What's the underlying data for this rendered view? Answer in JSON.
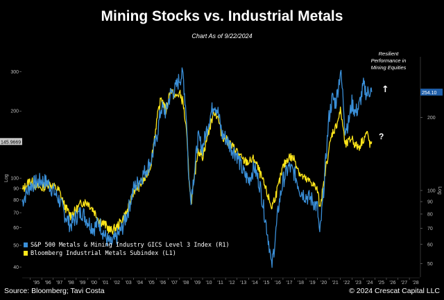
{
  "header": {
    "title": "Mining Stocks vs. Industrial Metals",
    "subtitle": "Chart As of 9/22/2024"
  },
  "footer": {
    "source": "Source: Bloomberg; Tavi Costa",
    "copyright": "© 2024 Crescat Capital LLC"
  },
  "colors": {
    "background": "#000000",
    "mining_series": "#3a8fd8",
    "metals_series": "#ffe61a",
    "mining_tag": "#1f5ea8",
    "metals_tag": "#c8c8c8"
  },
  "chart_data": {
    "type": "line",
    "scale": "log",
    "title": "Mining Stocks vs. Industrial Metals",
    "xlim": [
      1994.3,
      2028.9
    ],
    "x_ticks": [
      "'95",
      "'96",
      "'97",
      "'98",
      "'99",
      "'00",
      "'01",
      "'02",
      "'03",
      "'04",
      "'05",
      "'06",
      "'07",
      "'08",
      "'09",
      "'10",
      "'11",
      "'12",
      "'13",
      "'14",
      "'15",
      "'16",
      "'17",
      "'18",
      "'19",
      "'20",
      "'21",
      "'22",
      "'23",
      "'24",
      "'25",
      "'26",
      "'27",
      "'28"
    ],
    "left_axis": {
      "label": "Log",
      "ylim": [
        36,
        350
      ],
      "ticks": [
        40,
        50,
        60,
        70,
        80,
        90,
        100,
        200,
        300
      ],
      "last_value_tag": "145.9669"
    },
    "right_axis": {
      "label": "Log",
      "ylim": [
        44,
        355
      ],
      "ticks": [
        50,
        60,
        70,
        80,
        90,
        100,
        200
      ],
      "last_value_tag": "254.10"
    },
    "series": [
      {
        "name": "S&P 500 Metals & Mining Industry GICS Level 3 Index (R1)",
        "axis": "right",
        "x": [
          1994.3,
          1995,
          1995.5,
          1996,
          1996.5,
          1997,
          1997.5,
          1998,
          1998.5,
          1999,
          1999.5,
          2000,
          2000.5,
          2001,
          2001.5,
          2002,
          2002.5,
          2003,
          2003.5,
          2004,
          2004.5,
          2005,
          2005.5,
          2006,
          2006.4,
          2006.8,
          2007.2,
          2007.6,
          2008,
          2008.3,
          2008.6,
          2008.8,
          2009,
          2009.3,
          2009.6,
          2010,
          2010.5,
          2011,
          2011.3,
          2011.7,
          2012,
          2012.5,
          2013,
          2013.5,
          2014,
          2014.5,
          2015,
          2015.4,
          2015.8,
          2016,
          2016.3,
          2016.6,
          2017,
          2017.5,
          2018,
          2018.5,
          2019,
          2019.5,
          2020,
          2020.2,
          2020.5,
          2020.8,
          2021,
          2021.3,
          2021.6,
          2022,
          2022.2,
          2022.4,
          2022.7,
          2023,
          2023.3,
          2023.6,
          2024,
          2024.3,
          2024.6,
          2024.72
        ],
        "values": [
          90,
          105,
          108,
          110,
          108,
          100,
          92,
          80,
          72,
          78,
          82,
          75,
          70,
          74,
          65,
          60,
          64,
          70,
          82,
          102,
          110,
          120,
          132,
          165,
          220,
          210,
          250,
          260,
          290,
          300,
          200,
          110,
          95,
          120,
          165,
          150,
          190,
          230,
          215,
          170,
          165,
          150,
          140,
          120,
          110,
          125,
          105,
          80,
          60,
          48,
          62,
          85,
          110,
          125,
          118,
          100,
          95,
          92,
          85,
          65,
          95,
          150,
          200,
          240,
          230,
          310,
          250,
          180,
          190,
          230,
          210,
          220,
          270,
          250,
          260,
          254.1
        ]
      },
      {
        "name": "Bloomberg Industrial Metals Subindex (L1)",
        "axis": "left",
        "x": [
          1994.3,
          1995,
          1995.5,
          1996,
          1996.5,
          1997,
          1997.5,
          1998,
          1998.5,
          1999,
          1999.5,
          2000,
          2000.5,
          2001,
          2001.5,
          2002,
          2002.5,
          2003,
          2003.5,
          2004,
          2004.5,
          2005,
          2005.5,
          2006,
          2006.4,
          2006.8,
          2007.2,
          2007.6,
          2008,
          2008.3,
          2008.6,
          2008.8,
          2009,
          2009.3,
          2009.6,
          2010,
          2010.5,
          2011,
          2011.3,
          2011.7,
          2012,
          2012.5,
          2013,
          2013.5,
          2014,
          2014.5,
          2015,
          2015.4,
          2015.8,
          2016,
          2016.3,
          2016.6,
          2017,
          2017.5,
          2018,
          2018.5,
          2019,
          2019.5,
          2020,
          2020.2,
          2020.5,
          2020.8,
          2021,
          2021.3,
          2021.6,
          2022,
          2022.2,
          2022.4,
          2022.7,
          2023,
          2023.3,
          2023.6,
          2024,
          2024.3,
          2024.6,
          2024.72
        ],
        "values": [
          88,
          98,
          92,
          90,
          95,
          92,
          88,
          75,
          68,
          72,
          78,
          78,
          72,
          65,
          62,
          58,
          60,
          65,
          72,
          88,
          92,
          100,
          115,
          180,
          230,
          200,
          250,
          230,
          240,
          220,
          160,
          105,
          78,
          100,
          135,
          125,
          160,
          200,
          190,
          155,
          150,
          140,
          132,
          120,
          118,
          122,
          105,
          92,
          80,
          74,
          82,
          92,
          112,
          125,
          122,
          104,
          98,
          96,
          88,
          75,
          90,
          118,
          135,
          160,
          170,
          200,
          175,
          140,
          145,
          152,
          140,
          138,
          150,
          160,
          140,
          145.97
        ]
      }
    ],
    "annotations": [
      {
        "text_lines": [
          "Resilient",
          "Performance in",
          "Mining Equities"
        ],
        "arrow": "↑",
        "near_series": "mining"
      },
      {
        "text": "?",
        "near_series": "metals"
      }
    ],
    "legend": {
      "placement": "bottom-left",
      "entries": [
        "S&P 500 Metals & Mining Industry GICS Level 3 Index (R1)",
        "Bloomberg Industrial Metals Subindex (L1)"
      ]
    }
  }
}
